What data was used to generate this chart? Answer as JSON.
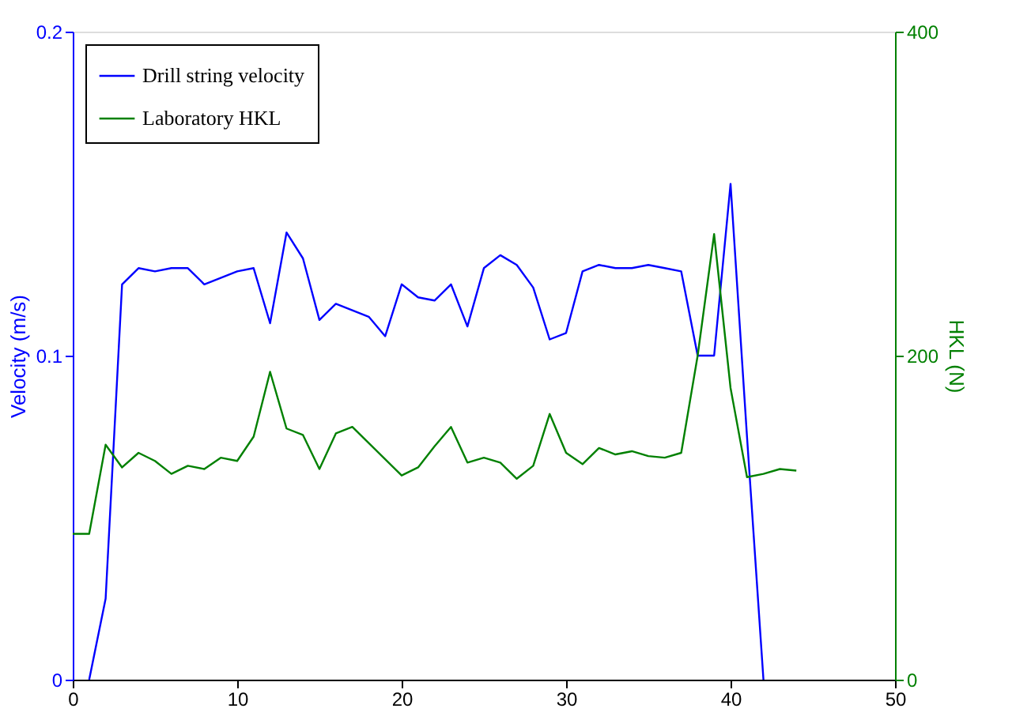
{
  "chart_data": {
    "type": "line",
    "xlim": [
      0,
      50
    ],
    "xticks": [
      0,
      10,
      20,
      30,
      40,
      50
    ],
    "ylim": [
      0,
      0.2
    ],
    "yticks": [
      0,
      0.1,
      0.2
    ],
    "ylabel": "Velocity (m/s)",
    "y2lim": [
      0,
      400
    ],
    "y2ticks": [
      0,
      200,
      400
    ],
    "y2label": "HKL (N)",
    "legend": "top left",
    "grid": false,
    "marker": "none",
    "line_style": "solid",
    "series": [
      {
        "name": "Drill string velocity",
        "color": "#0000ff",
        "x": [
          1,
          2,
          3,
          4,
          5,
          6,
          7,
          8,
          9,
          10,
          11,
          12,
          13,
          14,
          15,
          16,
          17,
          18,
          19,
          20,
          21,
          22,
          23,
          24,
          25,
          26,
          27,
          28,
          29,
          30,
          31,
          32,
          33,
          34,
          35,
          36,
          37,
          38,
          39,
          40,
          41,
          42
        ],
        "values": [
          0,
          0.025,
          0.122,
          0.127,
          0.126,
          0.127,
          0.127,
          0.122,
          0.124,
          0.126,
          0.127,
          0.11,
          0.138,
          0.13,
          0.111,
          0.116,
          0.114,
          0.112,
          0.106,
          0.122,
          0.118,
          0.117,
          0.122,
          0.109,
          0.127,
          0.131,
          0.128,
          0.121,
          0.105,
          0.107,
          0.126,
          0.128,
          0.127,
          0.127,
          0.128,
          0.127,
          0.126,
          0.1,
          0.1,
          0.153,
          0.075,
          0
        ]
      },
      {
        "name": "Laboratory HKL",
        "color": "#008000",
        "axis": "y2",
        "x": [
          0,
          1,
          2,
          3,
          4,
          5,
          6,
          7,
          8,
          9,
          10,
          11,
          12,
          13,
          14,
          15,
          16,
          17,
          18,
          19,
          20,
          21,
          22,
          23,
          24,
          25,
          26,
          27,
          28,
          29,
          30,
          31,
          32,
          33,
          34,
          35,
          36,
          37,
          38,
          39,
          40,
          41,
          42,
          43,
          44
        ],
        "values": [
          90,
          90,
          145,
          131,
          140,
          135,
          127,
          132,
          130,
          137,
          135,
          150,
          190,
          155,
          151,
          130,
          152,
          156,
          146,
          136,
          126,
          131,
          144,
          156,
          134,
          137,
          134,
          124,
          132,
          164,
          140,
          133,
          143,
          139,
          141,
          138,
          137,
          140,
          200,
          275,
          180,
          125,
          127,
          130,
          129
        ]
      }
    ]
  }
}
